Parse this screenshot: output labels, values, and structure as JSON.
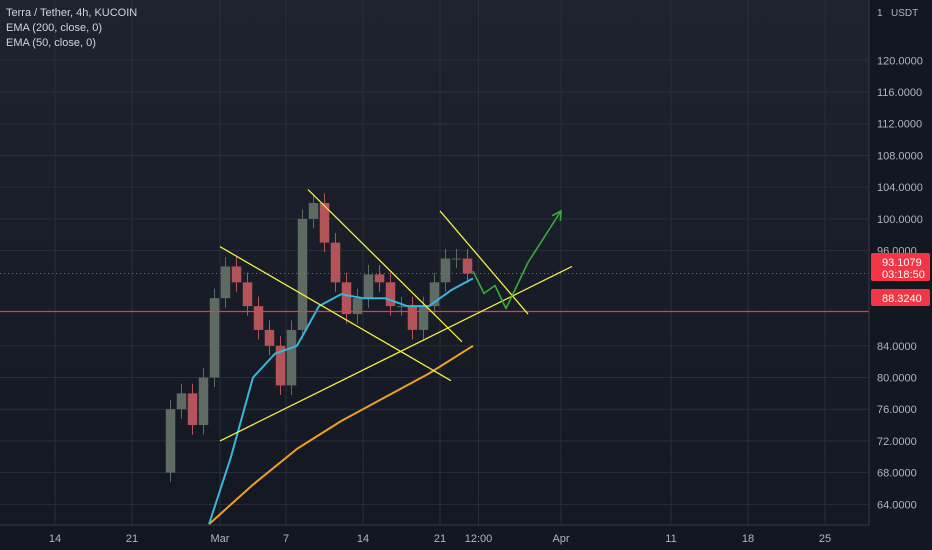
{
  "legend": {
    "title": "Terra / Tether, 4h, KUCOIN",
    "ema200": "EMA (200, close, 0)",
    "ema50": "EMA (50, close, 0)"
  },
  "price_axis": {
    "unit_count": "1",
    "unit": "USDT",
    "ticks": [
      "120.0000",
      "116.0000",
      "112.0000",
      "108.0000",
      "104.0000",
      "100.0000",
      "96.0000",
      "84.0000",
      "80.0000",
      "76.0000",
      "72.0000",
      "68.0000",
      "64.0000"
    ],
    "tick_values": [
      120,
      116,
      112,
      108,
      104,
      100,
      96,
      84,
      80,
      76,
      72,
      68,
      64
    ],
    "last_price_label": "93.1079",
    "countdown_label": "03:18:50",
    "level_label": "88.3240"
  },
  "time_axis": {
    "ticks": [
      "14",
      "21",
      "Mar",
      "7",
      "14",
      "21",
      "12:00",
      "Apr",
      "11",
      "18",
      "25"
    ],
    "tick_dates": [
      "2022-02-14",
      "2022-02-21",
      "2022-03-01",
      "2022-03-07",
      "2022-03-14",
      "2022-03-21",
      "2022-03-24T12:00",
      "2022-04-01",
      "2022-04-11",
      "2022-04-18",
      "2022-04-25"
    ]
  },
  "colors": {
    "background": "#131722",
    "up_candle": "#5d6b63",
    "down_candle": "#b3545a",
    "ema50": "#37b7da",
    "ema200": "#f0a020",
    "trend_lines": "#f0f040",
    "projection": "#3aaa3a",
    "support_line": "#f23645",
    "last_price": "#f23645",
    "grid": "#2a2e39"
  },
  "chart_data": {
    "type": "candlestick",
    "title": "Terra / Tether, 4h, KUCOIN",
    "xlabel": "",
    "ylabel": "",
    "unit": "USDT",
    "grid": true,
    "ylim": [
      61.4,
      127.6
    ],
    "xlim": [
      "2022-02-09",
      "2022-04-29"
    ],
    "last_price": 93.1079,
    "horizontal_level": 88.324,
    "series_close": [
      [
        "2022-02-24",
        68
      ],
      [
        "2022-02-25",
        76
      ],
      [
        "2022-02-26",
        78
      ],
      [
        "2022-02-27",
        74
      ],
      [
        "2022-02-28",
        80
      ],
      [
        "2022-03-01",
        90
      ],
      [
        "2022-03-02",
        94
      ],
      [
        "2022-03-03",
        92
      ],
      [
        "2022-03-04",
        89
      ],
      [
        "2022-03-05",
        86
      ],
      [
        "2022-03-06",
        84
      ],
      [
        "2022-03-07",
        79
      ],
      [
        "2022-03-08",
        86
      ],
      [
        "2022-03-09",
        100
      ],
      [
        "2022-03-10",
        102
      ],
      [
        "2022-03-11",
        97
      ],
      [
        "2022-03-12",
        92
      ],
      [
        "2022-03-13",
        88
      ],
      [
        "2022-03-14",
        90
      ],
      [
        "2022-03-15",
        93
      ],
      [
        "2022-03-16",
        92
      ],
      [
        "2022-03-17",
        89
      ],
      [
        "2022-03-18",
        89
      ],
      [
        "2022-03-19",
        86
      ],
      [
        "2022-03-20",
        89
      ],
      [
        "2022-03-21",
        92
      ],
      [
        "2022-03-22",
        95
      ],
      [
        "2022-03-23",
        95
      ],
      [
        "2022-03-24",
        93.1
      ]
    ],
    "ema50": [
      [
        "2022-02-28",
        61.5
      ],
      [
        "2022-03-02",
        70
      ],
      [
        "2022-03-04",
        80
      ],
      [
        "2022-03-06",
        83
      ],
      [
        "2022-03-08",
        84
      ],
      [
        "2022-03-10",
        89
      ],
      [
        "2022-03-12",
        90.5
      ],
      [
        "2022-03-14",
        90
      ],
      [
        "2022-03-16",
        90
      ],
      [
        "2022-03-18",
        89
      ],
      [
        "2022-03-20",
        89
      ],
      [
        "2022-03-22",
        91
      ],
      [
        "2022-03-24",
        92.5
      ]
    ],
    "ema200": [
      [
        "2022-02-28",
        61.5
      ],
      [
        "2022-03-04",
        66.5
      ],
      [
        "2022-03-08",
        71
      ],
      [
        "2022-03-12",
        74.5
      ],
      [
        "2022-03-16",
        77.5
      ],
      [
        "2022-03-20",
        80.5
      ],
      [
        "2022-03-24",
        84
      ]
    ],
    "annotations": [
      {
        "type": "trend_line",
        "from": [
          "2022-03-01",
          72
        ],
        "to": [
          "2022-04-02",
          94
        ]
      },
      {
        "type": "trend_line",
        "from": [
          "2022-03-01",
          96.5
        ],
        "to": [
          "2022-03-22",
          79.6
        ]
      },
      {
        "type": "trend_line",
        "from": [
          "2022-03-09",
          103.7
        ],
        "to": [
          "2022-03-23",
          84.5
        ]
      },
      {
        "type": "trend_line",
        "from": [
          "2022-03-21",
          101
        ],
        "to": [
          "2022-03-29",
          88
        ]
      },
      {
        "type": "projection_path",
        "points": [
          [
            "2022-03-24",
            93.4
          ],
          [
            "2022-03-25",
            90.6
          ],
          [
            "2022-03-26",
            91.6
          ],
          [
            "2022-03-27",
            88.7
          ],
          [
            "2022-03-29",
            94.5
          ],
          [
            "2022-04-01",
            101
          ]
        ],
        "arrow": true
      }
    ]
  }
}
